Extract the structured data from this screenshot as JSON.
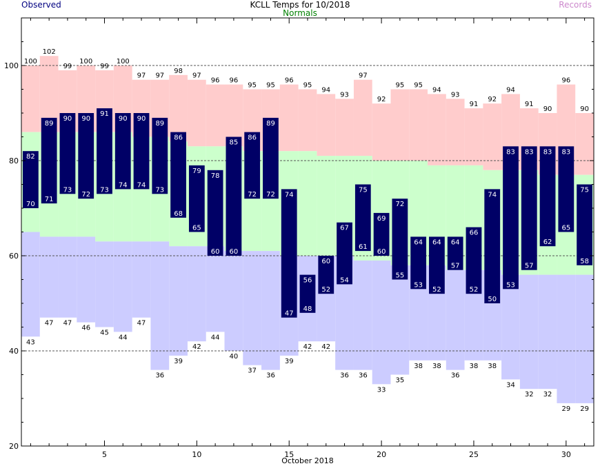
{
  "chart_data": {
    "type": "bar",
    "title": "KCLL Temps for 10/2018",
    "xlabel": "October 2018",
    "ylabel": "",
    "ylim": [
      20,
      110
    ],
    "xlim": [
      0.5,
      31.5
    ],
    "yticks": [
      20,
      40,
      60,
      80,
      100
    ],
    "xticks": [
      5,
      10,
      15,
      20,
      25,
      30
    ],
    "gridlines": [
      40,
      60,
      80,
      100
    ],
    "legend": {
      "observed": "Observed",
      "normals": "Normals",
      "records": "Records"
    },
    "colors": {
      "observed": "#000066",
      "observed_text": "#000080",
      "normals_band": "#ccffcc",
      "normals_text": "#008000",
      "record_high_band": "#ffcccc",
      "record_low_band": "#ccccff",
      "records_text": "#cc88cc",
      "grid": "#555555"
    },
    "days": [
      1,
      2,
      3,
      4,
      5,
      6,
      7,
      8,
      9,
      10,
      11,
      12,
      13,
      14,
      15,
      16,
      17,
      18,
      19,
      20,
      21,
      22,
      23,
      24,
      25,
      26,
      27,
      28,
      29,
      30,
      31
    ],
    "observed_high": [
      82,
      89,
      90,
      90,
      91,
      90,
      90,
      89,
      86,
      79,
      78,
      85,
      86,
      89,
      74,
      56,
      60,
      67,
      75,
      69,
      72,
      64,
      64,
      64,
      66,
      74,
      83,
      83,
      83,
      83,
      75
    ],
    "observed_low": [
      70,
      71,
      73,
      72,
      73,
      74,
      74,
      73,
      68,
      65,
      60,
      60,
      72,
      72,
      47,
      48,
      52,
      54,
      61,
      60,
      55,
      53,
      52,
      57,
      52,
      50,
      53,
      57,
      62,
      65,
      58
    ],
    "normal_high": [
      86,
      86,
      86,
      86,
      86,
      86,
      85,
      85,
      84,
      83,
      83,
      83,
      82,
      82,
      82,
      82,
      81,
      81,
      81,
      80,
      80,
      80,
      79,
      79,
      79,
      78,
      78,
      78,
      77,
      77,
      77
    ],
    "normal_low": [
      65,
      64,
      64,
      64,
      63,
      63,
      63,
      63,
      62,
      62,
      62,
      61,
      61,
      61,
      60,
      60,
      60,
      60,
      59,
      59,
      58,
      58,
      58,
      57,
      57,
      57,
      56,
      56,
      56,
      56,
      56
    ],
    "record_high": [
      100,
      102,
      99,
      100,
      99,
      100,
      97,
      97,
      98,
      97,
      96,
      96,
      95,
      95,
      96,
      95,
      94,
      93,
      97,
      92,
      95,
      95,
      94,
      93,
      91,
      92,
      94,
      91,
      90,
      96,
      90
    ],
    "record_low": [
      43,
      47,
      47,
      46,
      45,
      44,
      47,
      36,
      39,
      42,
      44,
      40,
      37,
      36,
      39,
      42,
      42,
      36,
      36,
      33,
      35,
      38,
      38,
      36,
      38,
      38,
      34,
      32,
      32,
      29,
      29
    ]
  }
}
